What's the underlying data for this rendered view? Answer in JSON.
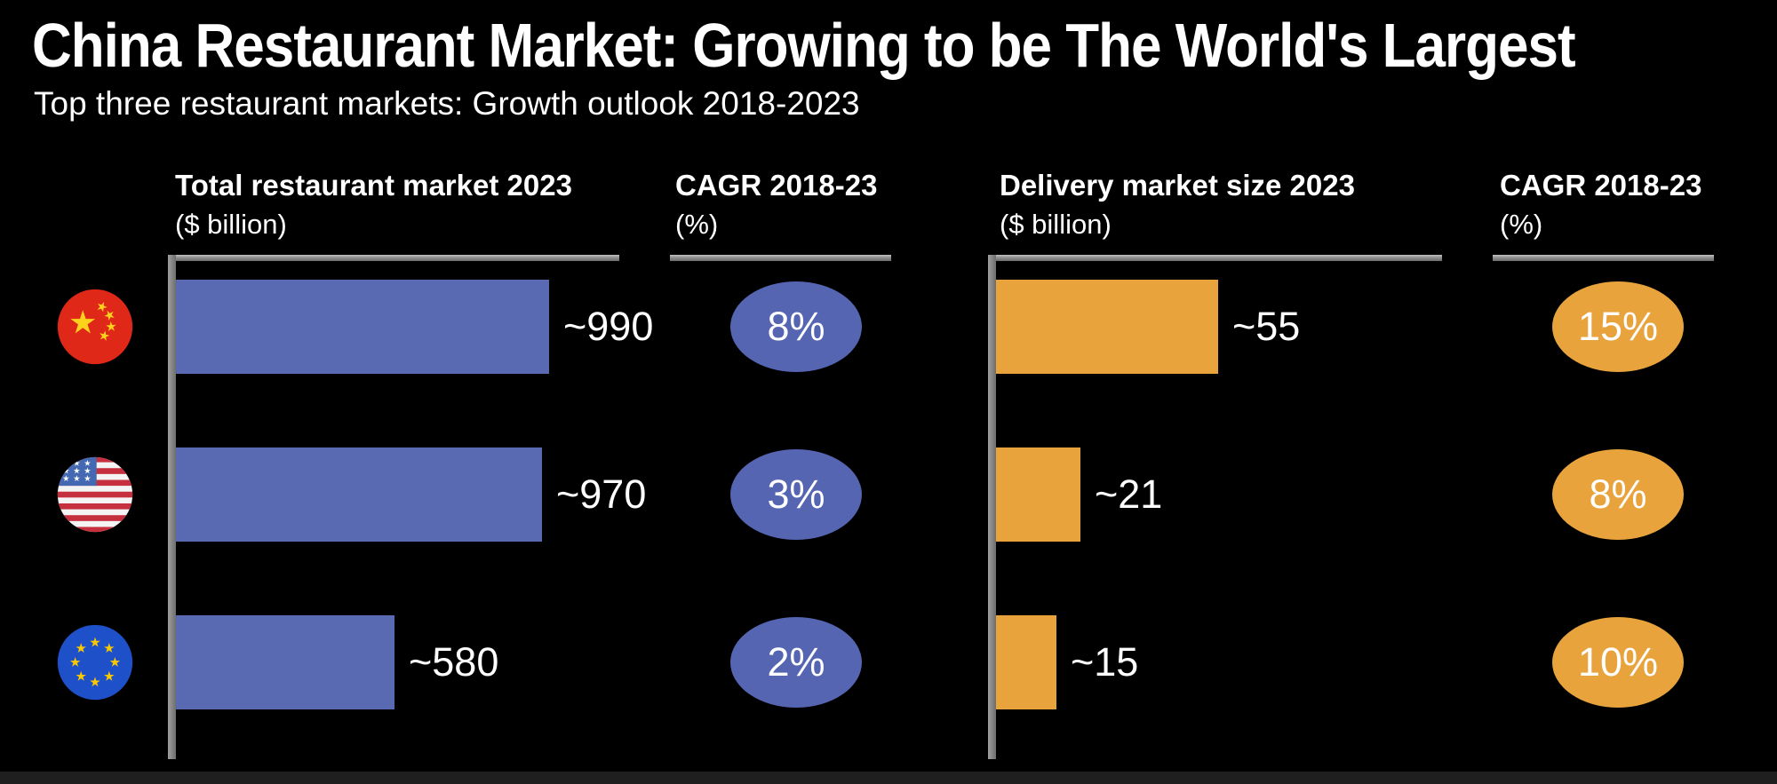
{
  "page": {
    "title": "China Restaurant Market: Growing to be The World's Largest",
    "subtitle": "Top three restaurant markets: Growth outlook 2018-2023"
  },
  "columns": [
    {
      "title": "Total restaurant market 2023",
      "unit": "($ billion)"
    },
    {
      "title": "CAGR 2018-23",
      "unit": "(%)"
    },
    {
      "title": "Delivery market size 2023",
      "unit": "($ billion)"
    },
    {
      "title": "CAGR 2018-23",
      "unit": "(%)"
    }
  ],
  "chart_data": {
    "type": "bar",
    "orientation": "horizontal",
    "categories": [
      "China",
      "United States",
      "European Union"
    ],
    "flag_icons": [
      "china-flag-icon",
      "usa-flag-icon",
      "eu-flag-icon"
    ],
    "series": [
      {
        "key": "total",
        "style": "bar",
        "name": "Total restaurant market 2023",
        "unit": "$ billion",
        "values": [
          990,
          970,
          580
        ],
        "labels": [
          "~990",
          "~970",
          "~580"
        ],
        "axis_max": 990,
        "color": "#5a6ab2"
      },
      {
        "key": "cagr_total",
        "style": "ellipse-badge",
        "name": "CAGR 2018-23",
        "unit": "%",
        "values": [
          8,
          3,
          2
        ],
        "labels": [
          "8%",
          "3%",
          "2%"
        ],
        "color": "#5565b2"
      },
      {
        "key": "delivery",
        "style": "bar",
        "name": "Delivery market size 2023",
        "unit": "$ billion",
        "values": [
          55,
          21,
          15
        ],
        "labels": [
          "~55",
          "~21",
          "~15"
        ],
        "axis_max": 55,
        "color": "#e9a33d"
      },
      {
        "key": "cagr_delivery",
        "style": "ellipse-badge",
        "name": "CAGR 2018-23",
        "unit": "%",
        "values": [
          15,
          8,
          10
        ],
        "labels": [
          "15%",
          "8%",
          "10%"
        ],
        "color": "#e9a33d"
      }
    ],
    "grid": false,
    "legend": false
  },
  "colors": {
    "background": "#000000",
    "text": "#ffffff",
    "bar_blue": "#5a6ab2",
    "ellipse_blue": "#5565b2",
    "bar_orange": "#e9a33d",
    "axis_gray": "#8c8c8c"
  }
}
